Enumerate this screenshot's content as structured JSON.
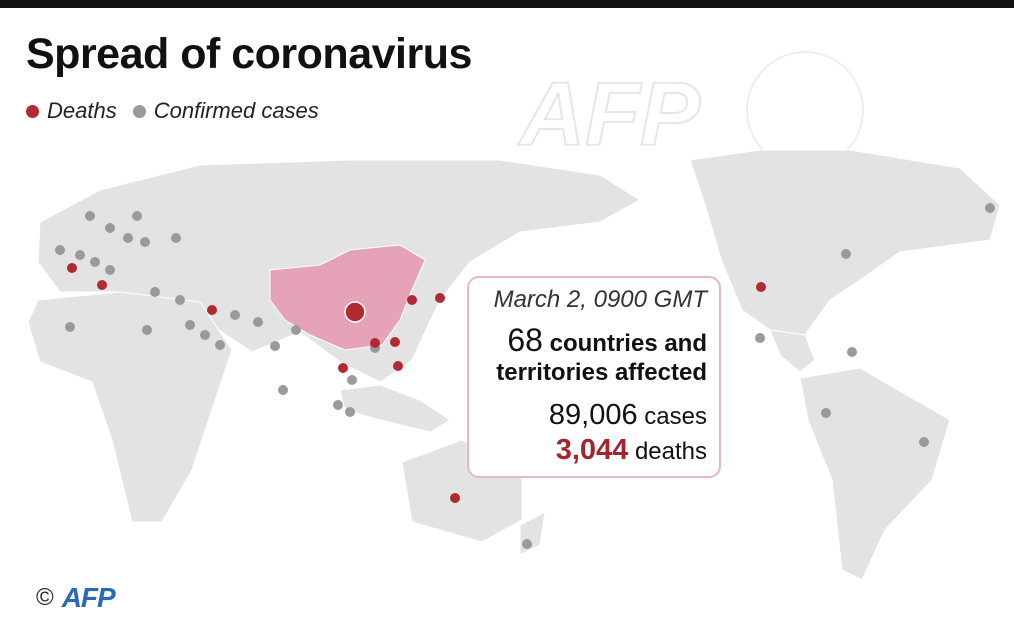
{
  "header": {
    "title": "Spread of coronavirus"
  },
  "legend": {
    "items": [
      "Deaths",
      "Confirmed cases"
    ]
  },
  "info_box": {
    "date": "March 2, 0900 GMT",
    "countries_count": "68",
    "countries_line1": "countries and",
    "countries_line2": "territories affected",
    "cases_count": "89,006",
    "cases_label": "cases",
    "deaths_count": "3,044",
    "deaths_label": "deaths"
  },
  "credit": {
    "symbol": "©",
    "logo": "AFP"
  }
}
